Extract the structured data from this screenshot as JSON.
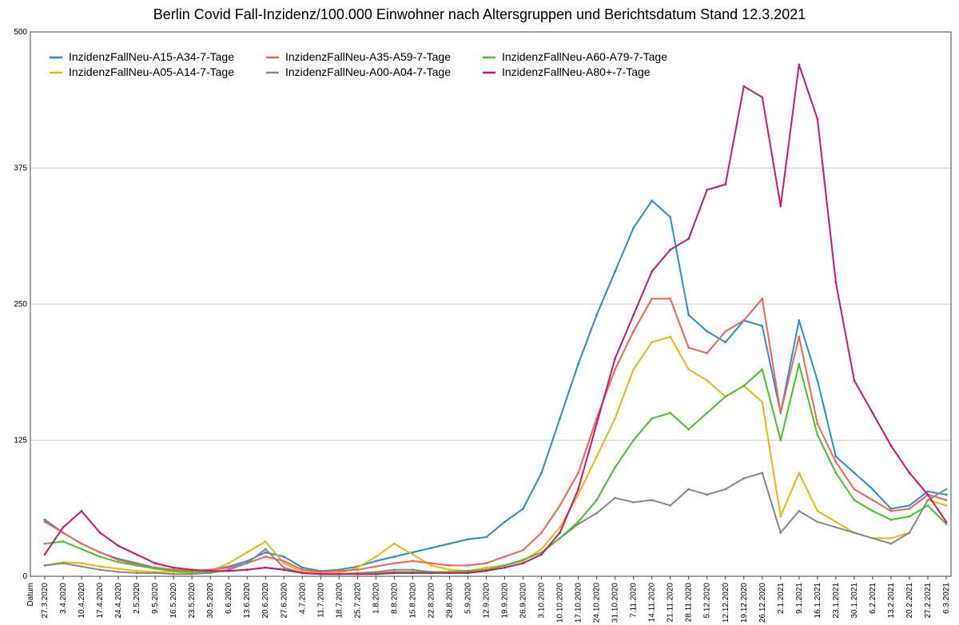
{
  "chart_data": {
    "type": "line",
    "title": "Berlin Covid Fall-Inzidenz/100.000 Einwohner nach Altersgruppen und Berichtsdatum Stand 12.3.2021",
    "xlabel": "Datum",
    "ylabel": "",
    "ylim": [
      0,
      500
    ],
    "yticks": [
      0,
      125,
      250,
      375,
      500
    ],
    "grid": true,
    "legend_position": "top-left",
    "categories": [
      "27.3.2020",
      "3.4.2020",
      "10.4.2020",
      "17.4.2020",
      "24.4.2020",
      "2.5.2020",
      "9.5.2020",
      "16.5.2020",
      "23.5.2020",
      "30.5.2020",
      "6.6.2020",
      "13.6.2020",
      "20.6.2020",
      "27.6.2020",
      "4.7.2020",
      "11.7.2020",
      "18.7.2020",
      "25.7.2020",
      "1.8.2020",
      "8.8.2020",
      "15.8.2020",
      "22.8.2020",
      "29.8.2020",
      "5.9.2020",
      "12.9.2020",
      "19.9.2020",
      "26.9.2020",
      "3.10.2020",
      "10.10.2020",
      "17.10.2020",
      "24.10.2020",
      "31.10.2020",
      "7.11.2020",
      "14.11.2020",
      "21.11.2020",
      "28.11.2020",
      "5.12.2020",
      "12.12.2020",
      "19.12.2020",
      "26.12.2020",
      "2.1.2021",
      "9.1.2021",
      "16.1.2021",
      "23.1.2021",
      "30.1.2021",
      "6.2.2021",
      "13.2.2021",
      "20.2.2021",
      "27.2.2021",
      "6.3.2021"
    ],
    "series": [
      {
        "name": "InzidenzFallNeu-A15-A34-7-Tage",
        "color": "#1f8fe0",
        "values": [
          52,
          40,
          30,
          22,
          16,
          12,
          8,
          6,
          5,
          6,
          9,
          14,
          22,
          18,
          8,
          5,
          6,
          9,
          14,
          18,
          22,
          26,
          30,
          34,
          36,
          50,
          62,
          95,
          145,
          195,
          240,
          280,
          320,
          345,
          330,
          240,
          225,
          215,
          235,
          230,
          150,
          235,
          180,
          110,
          95,
          80,
          62,
          65,
          78,
          75
        ]
      },
      {
        "name": "InzidenzFallNeu-A05-A14-7-Tage",
        "color": "#f2b705",
        "values": [
          10,
          13,
          12,
          9,
          7,
          5,
          4,
          4,
          3,
          5,
          12,
          22,
          32,
          12,
          4,
          3,
          3,
          8,
          18,
          30,
          20,
          10,
          6,
          5,
          8,
          10,
          14,
          25,
          45,
          75,
          110,
          145,
          190,
          215,
          220,
          190,
          180,
          165,
          175,
          160,
          55,
          95,
          60,
          50,
          40,
          35,
          35,
          40,
          70,
          65
        ]
      },
      {
        "name": "InzidenzFallNeu-A35-A59-7-Tage",
        "color": "#ff5f4f",
        "values": [
          50,
          40,
          30,
          22,
          15,
          11,
          8,
          6,
          5,
          6,
          8,
          12,
          18,
          14,
          6,
          4,
          5,
          6,
          9,
          12,
          14,
          12,
          10,
          10,
          12,
          18,
          24,
          40,
          65,
          95,
          145,
          190,
          225,
          255,
          255,
          210,
          205,
          225,
          235,
          255,
          150,
          220,
          140,
          105,
          80,
          70,
          60,
          62,
          75,
          70
        ]
      },
      {
        "name": "InzidenzFallNeu-A00-A04-7-Tage",
        "color": "#888888",
        "values": [
          10,
          12,
          9,
          6,
          4,
          3,
          3,
          2,
          2,
          3,
          6,
          12,
          25,
          8,
          3,
          2,
          2,
          3,
          4,
          6,
          6,
          4,
          4,
          5,
          6,
          10,
          15,
          22,
          35,
          48,
          58,
          72,
          68,
          70,
          65,
          80,
          75,
          80,
          90,
          95,
          40,
          60,
          50,
          45,
          40,
          35,
          30,
          40,
          70,
          80
        ]
      },
      {
        "name": "InzidenzFallNeu-A60-A79-7-Tage",
        "color": "#40c820",
        "values": [
          30,
          32,
          25,
          18,
          13,
          10,
          7,
          5,
          4,
          4,
          5,
          6,
          8,
          6,
          3,
          2,
          2,
          3,
          3,
          4,
          4,
          4,
          4,
          4,
          6,
          10,
          15,
          22,
          35,
          50,
          70,
          100,
          125,
          145,
          150,
          135,
          150,
          165,
          175,
          190,
          125,
          195,
          130,
          95,
          70,
          60,
          52,
          55,
          65,
          48
        ]
      },
      {
        "name": "InzidenzFallNeu-A80+-7-Tage",
        "color": "#d1127a",
        "values": [
          20,
          45,
          60,
          40,
          28,
          20,
          12,
          8,
          6,
          5,
          5,
          6,
          8,
          6,
          3,
          2,
          2,
          2,
          2,
          3,
          3,
          3,
          3,
          3,
          5,
          8,
          12,
          20,
          40,
          80,
          140,
          200,
          240,
          280,
          300,
          310,
          355,
          360,
          450,
          440,
          340,
          470,
          420,
          270,
          180,
          150,
          120,
          95,
          75,
          50
        ]
      }
    ]
  }
}
